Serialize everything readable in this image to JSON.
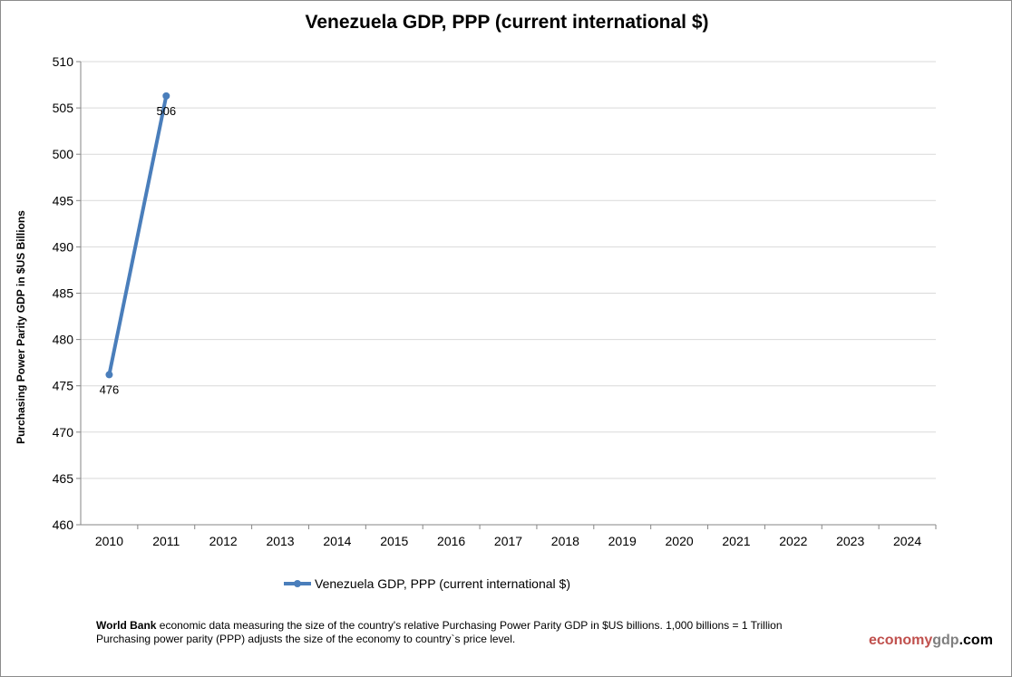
{
  "chart_data": {
    "type": "line",
    "title": "Venezuela GDP, PPP (current international $)",
    "ylabel": "Purchasing Power Parity GDP in $US Billions",
    "xlabel": "",
    "categories": [
      "2010",
      "2011",
      "2012",
      "2013",
      "2014",
      "2015",
      "2016",
      "2017",
      "2018",
      "2019",
      "2020",
      "2021",
      "2022",
      "2023",
      "2024"
    ],
    "ylim": [
      460,
      510
    ],
    "yticks": [
      460,
      465,
      470,
      475,
      480,
      485,
      490,
      495,
      500,
      505,
      510
    ],
    "grid": true,
    "legend_placement": "bottom",
    "series": [
      {
        "name": "Venezuela GDP, PPP (current international $)",
        "values": [
          476.2,
          506.3,
          null,
          null,
          null,
          null,
          null,
          null,
          null,
          null,
          null,
          null,
          null,
          null,
          null
        ],
        "labels": [
          "476",
          "506"
        ],
        "color": "#4a7ebb"
      }
    ]
  },
  "footer": {
    "source_bold": "World Bank",
    "line1": " economic data  measuring the size of the country's relative  Purchasing Power Parity GDP in $US billions. 1,000 billions = 1 Trillion",
    "line2": "Purchasing power parity (PPP) adjusts the size of the economy to country`s price level."
  },
  "brand": {
    "part1": "economy",
    "part2": "gdp",
    "part3": ".com",
    "color1": "#c0504d",
    "color2": "#7f7f7f",
    "color3": "#000000"
  }
}
